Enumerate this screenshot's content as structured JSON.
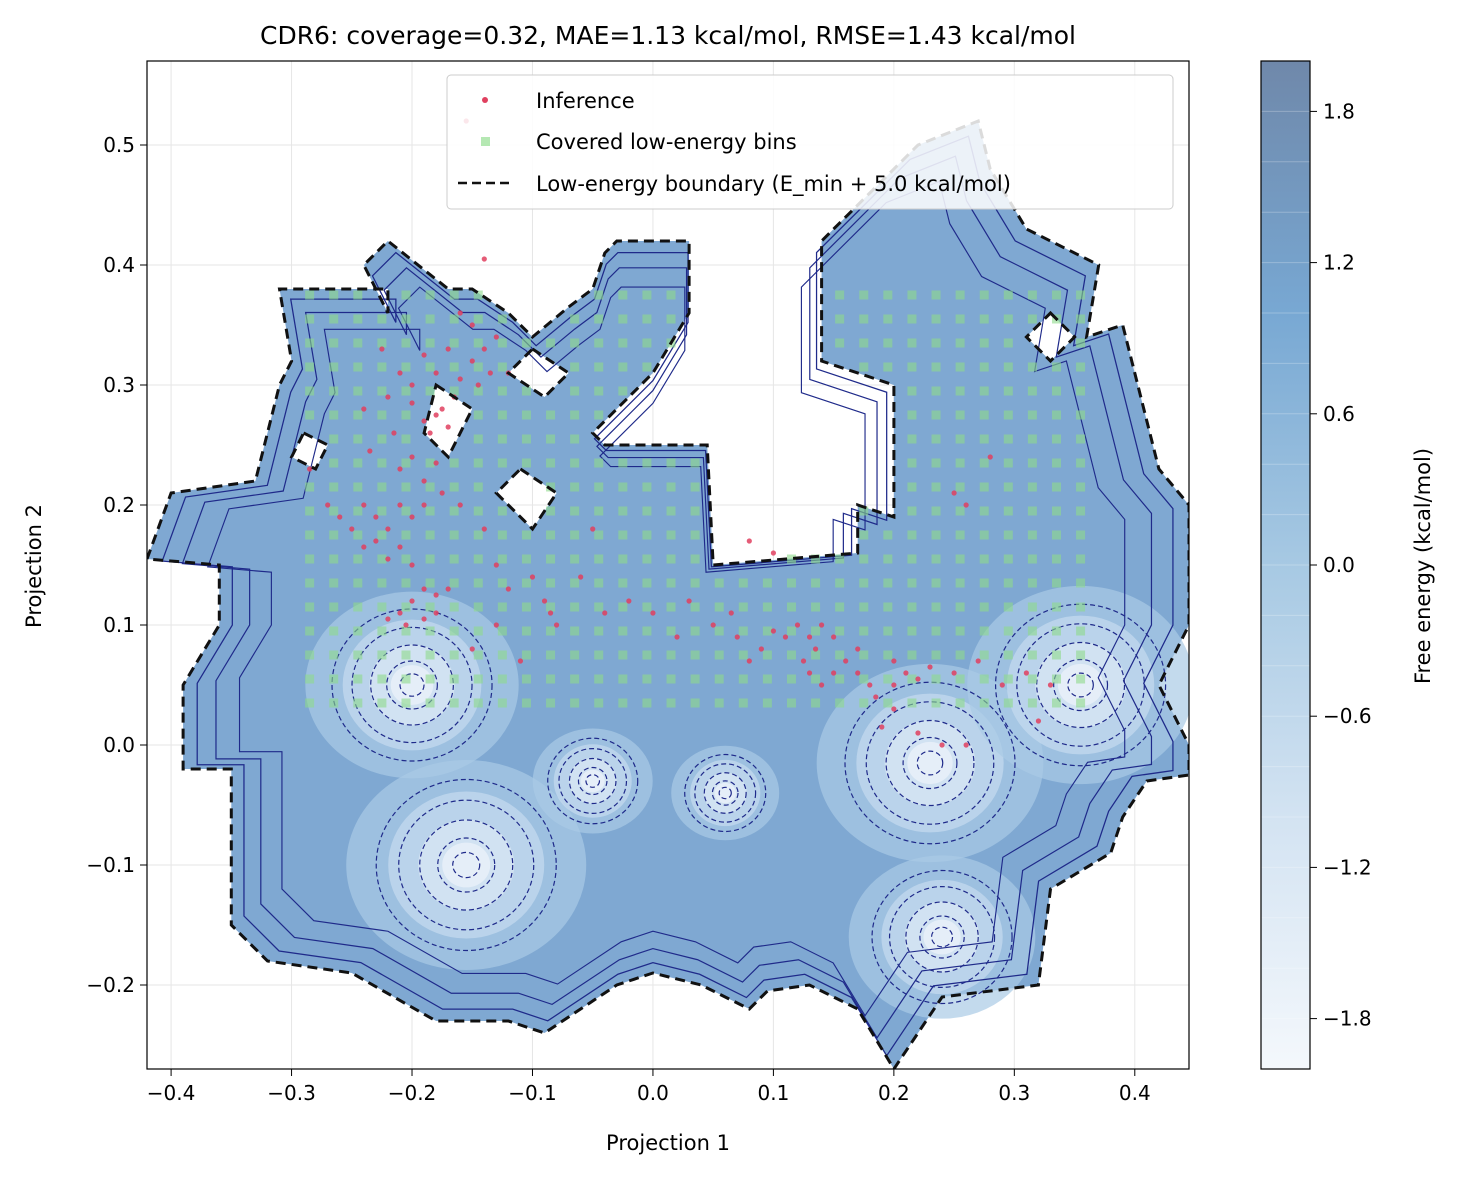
{
  "chart_data": {
    "type": "heatmap",
    "subtype": "free-energy contour map with overlays",
    "title": "CDR6: coverage=0.32, MAE=1.13 kcal/mol, RMSE=1.43 kcal/mol",
    "xlabel": "Projection 1",
    "ylabel": "Projection 2",
    "xlim": [
      -0.42,
      0.445
    ],
    "ylim": [
      -0.27,
      0.57
    ],
    "xticks": [
      -0.4,
      -0.3,
      -0.2,
      -0.1,
      0.0,
      0.1,
      0.2,
      0.3,
      0.4
    ],
    "xtick_labels": [
      "−0.4",
      "−0.3",
      "−0.2",
      "−0.1",
      "0.0",
      "0.1",
      "0.2",
      "0.3",
      "0.4"
    ],
    "yticks": [
      -0.2,
      -0.1,
      0.0,
      0.1,
      0.2,
      0.3,
      0.4,
      0.5
    ],
    "ytick_labels": [
      "−0.2",
      "−0.1",
      "0.0",
      "0.1",
      "0.2",
      "0.3",
      "0.4",
      "0.5"
    ],
    "grid": true,
    "colorbar": {
      "label": "Free energy (kcal/mol)",
      "range": [
        -2.0,
        2.0
      ],
      "ticks": [
        -1.8,
        -1.2,
        -0.6,
        0.0,
        0.6,
        1.2,
        1.8
      ],
      "tick_labels": [
        "−1.8",
        "−1.2",
        "−0.6",
        "0.0",
        "0.6",
        "1.2",
        "1.8"
      ],
      "levels": 20,
      "colormap": "Blues"
    },
    "basins": [
      {
        "x": -0.2,
        "y": 0.05,
        "energy": -1.6
      },
      {
        "x": -0.155,
        "y": -0.1,
        "energy": -1.8
      },
      {
        "x": 0.23,
        "y": -0.015,
        "energy": -1.7
      },
      {
        "x": 0.355,
        "y": 0.05,
        "energy": -1.7
      },
      {
        "x": 0.24,
        "y": -0.16,
        "energy": -1.4
      },
      {
        "x": -0.05,
        "y": -0.03,
        "energy": -0.9
      },
      {
        "x": 0.06,
        "y": -0.04,
        "energy": -0.8
      }
    ],
    "low_energy_region_polygon": [
      [
        -0.42,
        0.155
      ],
      [
        -0.4,
        0.21
      ],
      [
        -0.33,
        0.22
      ],
      [
        -0.31,
        0.3
      ],
      [
        -0.3,
        0.32
      ],
      [
        -0.31,
        0.38
      ],
      [
        -0.22,
        0.38
      ],
      [
        -0.22,
        0.36
      ],
      [
        -0.24,
        0.4
      ],
      [
        -0.22,
        0.42
      ],
      [
        -0.17,
        0.38
      ],
      [
        -0.15,
        0.38
      ],
      [
        -0.12,
        0.36
      ],
      [
        -0.1,
        0.34
      ],
      [
        -0.07,
        0.365
      ],
      [
        -0.05,
        0.38
      ],
      [
        -0.04,
        0.41
      ],
      [
        -0.03,
        0.42
      ],
      [
        0.03,
        0.42
      ],
      [
        0.03,
        0.36
      ],
      [
        0.0,
        0.31
      ],
      [
        -0.05,
        0.26
      ],
      [
        -0.04,
        0.25
      ],
      [
        0.045,
        0.25
      ],
      [
        0.05,
        0.15
      ],
      [
        0.17,
        0.16
      ],
      [
        0.17,
        0.2
      ],
      [
        0.2,
        0.19
      ],
      [
        0.2,
        0.3
      ],
      [
        0.14,
        0.32
      ],
      [
        0.14,
        0.42
      ],
      [
        0.22,
        0.5
      ],
      [
        0.27,
        0.52
      ],
      [
        0.28,
        0.48
      ],
      [
        0.31,
        0.43
      ],
      [
        0.37,
        0.4
      ],
      [
        0.36,
        0.34
      ],
      [
        0.39,
        0.35
      ],
      [
        0.42,
        0.23
      ],
      [
        0.445,
        0.2
      ],
      [
        0.445,
        0.1
      ],
      [
        0.42,
        0.05
      ],
      [
        0.445,
        0.0
      ],
      [
        0.445,
        -0.025
      ],
      [
        0.41,
        -0.03
      ],
      [
        0.39,
        -0.06
      ],
      [
        0.38,
        -0.09
      ],
      [
        0.33,
        -0.12
      ],
      [
        0.32,
        -0.2
      ],
      [
        0.24,
        -0.21
      ],
      [
        0.22,
        -0.24
      ],
      [
        0.2,
        -0.27
      ],
      [
        0.17,
        -0.22
      ],
      [
        0.13,
        -0.2
      ],
      [
        0.095,
        -0.205
      ],
      [
        0.08,
        -0.22
      ],
      [
        0.04,
        -0.2
      ],
      [
        0.0,
        -0.19
      ],
      [
        -0.03,
        -0.2
      ],
      [
        -0.09,
        -0.24
      ],
      [
        -0.12,
        -0.23
      ],
      [
        -0.18,
        -0.23
      ],
      [
        -0.25,
        -0.19
      ],
      [
        -0.32,
        -0.18
      ],
      [
        -0.35,
        -0.15
      ],
      [
        -0.35,
        -0.02
      ],
      [
        -0.39,
        -0.02
      ],
      [
        -0.39,
        0.05
      ],
      [
        -0.36,
        0.1
      ],
      [
        -0.36,
        0.15
      ],
      [
        -0.42,
        0.155
      ]
    ],
    "low_energy_holes": [
      [
        [
          -0.29,
          0.26
        ],
        [
          -0.27,
          0.25
        ],
        [
          -0.28,
          0.23
        ],
        [
          -0.3,
          0.24
        ]
      ],
      [
        [
          -0.18,
          0.3
        ],
        [
          -0.15,
          0.28
        ],
        [
          -0.17,
          0.24
        ],
        [
          -0.19,
          0.26
        ]
      ],
      [
        [
          -0.1,
          0.33
        ],
        [
          -0.07,
          0.31
        ],
        [
          -0.09,
          0.29
        ],
        [
          -0.12,
          0.31
        ]
      ],
      [
        [
          -0.11,
          0.23
        ],
        [
          -0.08,
          0.21
        ],
        [
          -0.1,
          0.18
        ],
        [
          -0.13,
          0.21
        ]
      ],
      [
        [
          0.33,
          0.36
        ],
        [
          0.35,
          0.34
        ],
        [
          0.33,
          0.32
        ],
        [
          0.31,
          0.34
        ]
      ]
    ],
    "series": [
      {
        "name": "Inference",
        "kind": "scatter",
        "color": "#e0405f",
        "points": [
          [
            -0.18,
            0.275
          ],
          [
            -0.175,
            0.28
          ],
          [
            -0.19,
            0.27
          ],
          [
            -0.185,
            0.26
          ],
          [
            -0.2,
            0.285
          ],
          [
            -0.17,
            0.265
          ],
          [
            -0.165,
            0.29
          ],
          [
            -0.16,
            0.305
          ],
          [
            -0.15,
            0.32
          ],
          [
            -0.14,
            0.33
          ],
          [
            -0.13,
            0.34
          ],
          [
            -0.145,
            0.3
          ],
          [
            -0.135,
            0.31
          ],
          [
            -0.12,
            0.31
          ],
          [
            -0.15,
            0.35
          ],
          [
            -0.17,
            0.33
          ],
          [
            -0.18,
            0.31
          ],
          [
            -0.2,
            0.3
          ],
          [
            -0.21,
            0.31
          ],
          [
            -0.22,
            0.29
          ],
          [
            -0.215,
            0.26
          ],
          [
            -0.2,
            0.24
          ],
          [
            -0.21,
            0.23
          ],
          [
            -0.19,
            0.22
          ],
          [
            -0.18,
            0.235
          ],
          [
            -0.175,
            0.21
          ],
          [
            -0.19,
            0.2
          ],
          [
            -0.2,
            0.19
          ],
          [
            -0.21,
            0.2
          ],
          [
            -0.22,
            0.18
          ],
          [
            -0.23,
            0.19
          ],
          [
            -0.24,
            0.2
          ],
          [
            -0.25,
            0.18
          ],
          [
            -0.23,
            0.17
          ],
          [
            -0.22,
            0.155
          ],
          [
            -0.21,
            0.165
          ],
          [
            -0.2,
            0.15
          ],
          [
            -0.19,
            0.13
          ],
          [
            -0.18,
            0.125
          ],
          [
            -0.2,
            0.12
          ],
          [
            -0.21,
            0.11
          ],
          [
            -0.22,
            0.105
          ],
          [
            -0.205,
            0.1
          ],
          [
            -0.19,
            0.105
          ],
          [
            -0.18,
            0.11
          ],
          [
            -0.17,
            0.13
          ],
          [
            -0.24,
            0.165
          ],
          [
            -0.26,
            0.19
          ],
          [
            -0.14,
            0.405
          ],
          [
            -0.16,
            0.36
          ],
          [
            -0.19,
            0.325
          ],
          [
            -0.225,
            0.33
          ],
          [
            -0.24,
            0.28
          ],
          [
            -0.235,
            0.245
          ],
          [
            -0.16,
            0.2
          ],
          [
            -0.14,
            0.18
          ],
          [
            -0.13,
            0.15
          ],
          [
            -0.12,
            0.13
          ],
          [
            -0.1,
            0.14
          ],
          [
            -0.09,
            0.12
          ],
          [
            -0.085,
            0.11
          ],
          [
            -0.06,
            0.14
          ],
          [
            -0.05,
            0.18
          ],
          [
            -0.08,
            0.1
          ],
          [
            -0.04,
            0.11
          ],
          [
            -0.02,
            0.12
          ],
          [
            0.0,
            0.11
          ],
          [
            0.02,
            0.09
          ],
          [
            0.03,
            0.12
          ],
          [
            0.05,
            0.1
          ],
          [
            0.07,
            0.09
          ],
          [
            0.08,
            0.07
          ],
          [
            0.09,
            0.08
          ],
          [
            0.1,
            0.095
          ],
          [
            0.11,
            0.09
          ],
          [
            0.12,
            0.1
          ],
          [
            0.13,
            0.09
          ],
          [
            0.135,
            0.08
          ],
          [
            0.14,
            0.1
          ],
          [
            0.15,
            0.09
          ],
          [
            0.125,
            0.07
          ],
          [
            0.13,
            0.06
          ],
          [
            0.14,
            0.05
          ],
          [
            0.15,
            0.06
          ],
          [
            0.16,
            0.07
          ],
          [
            0.17,
            0.06
          ],
          [
            0.18,
            0.05
          ],
          [
            0.2,
            0.05
          ],
          [
            0.21,
            0.06
          ],
          [
            0.22,
            0.055
          ],
          [
            0.23,
            0.065
          ],
          [
            0.25,
            0.06
          ],
          [
            0.27,
            0.07
          ],
          [
            0.29,
            0.05
          ],
          [
            0.31,
            0.06
          ],
          [
            0.33,
            0.05
          ],
          [
            0.32,
            0.02
          ],
          [
            0.2,
            0.03
          ],
          [
            0.19,
            0.015
          ],
          [
            0.22,
            0.01
          ],
          [
            0.24,
            0.0
          ],
          [
            0.26,
            0.0
          ],
          [
            0.25,
            0.21
          ],
          [
            0.26,
            0.2
          ],
          [
            0.28,
            0.24
          ],
          [
            0.17,
            0.08
          ],
          [
            0.2,
            0.07
          ],
          [
            0.185,
            0.04
          ],
          [
            0.08,
            0.17
          ],
          [
            0.1,
            0.16
          ],
          [
            0.065,
            0.11
          ],
          [
            -0.27,
            0.2
          ],
          [
            -0.285,
            0.23
          ],
          [
            -0.13,
            0.1
          ],
          [
            -0.11,
            0.07
          ],
          [
            -0.15,
            0.08
          ],
          [
            -0.155,
            0.52
          ]
        ]
      },
      {
        "name": "Covered low-energy bins",
        "kind": "square markers",
        "color": "#8ddb8b",
        "x_bins": [
          -0.285,
          -0.265,
          -0.245,
          -0.225,
          -0.205,
          -0.185,
          -0.165,
          -0.145,
          -0.125,
          -0.105,
          -0.085,
          -0.065,
          -0.045,
          -0.025,
          -0.005,
          0.015,
          0.035,
          0.055,
          0.075,
          0.095,
          0.115,
          0.135,
          0.155,
          0.175,
          0.195,
          0.215,
          0.235,
          0.255,
          0.275,
          0.295,
          0.315,
          0.335,
          0.355
        ],
        "y_bins": [
          0.035,
          0.055,
          0.075,
          0.095,
          0.115,
          0.135,
          0.155,
          0.175,
          0.195,
          0.215,
          0.235,
          0.255,
          0.275,
          0.295,
          0.315,
          0.335,
          0.355,
          0.375
        ]
      },
      {
        "name": "Low-energy boundary (E_min + 5.0 kcal/mol)",
        "kind": "dashed line",
        "color": "#111111"
      }
    ],
    "legend": {
      "placement": "upper center",
      "entries": [
        "Inference",
        "Covered low-energy bins",
        "Low-energy boundary (E_min + 5.0 kcal/mol)"
      ]
    }
  }
}
